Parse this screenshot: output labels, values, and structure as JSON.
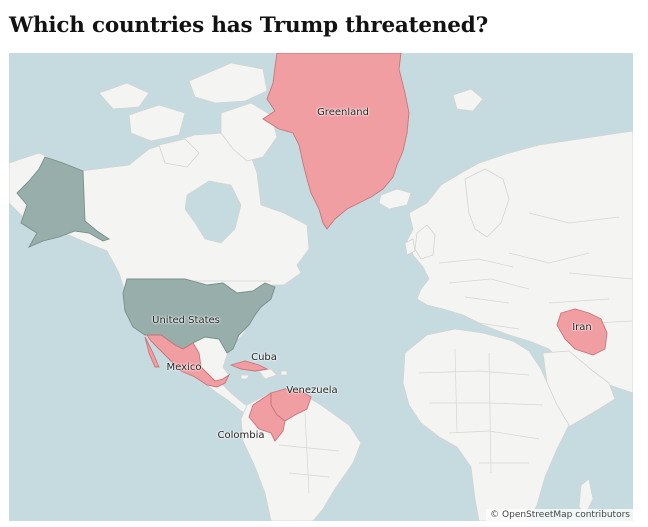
{
  "header": {
    "title": "Which countries has Trump threatened?"
  },
  "map": {
    "attribution": "© OpenStreetMap contributors",
    "labels": {
      "greenland": "Greenland",
      "united_states": "United States",
      "cuba": "Cuba",
      "mexico": "Mexico",
      "venezuela": "Venezuela",
      "colombia": "Colombia",
      "iran": "Iran"
    },
    "colors": {
      "threatened_country": "#f19ea3",
      "united_states": "#97aeaa",
      "land": "#f4f4f3",
      "water": "#c6dbe0"
    }
  }
}
